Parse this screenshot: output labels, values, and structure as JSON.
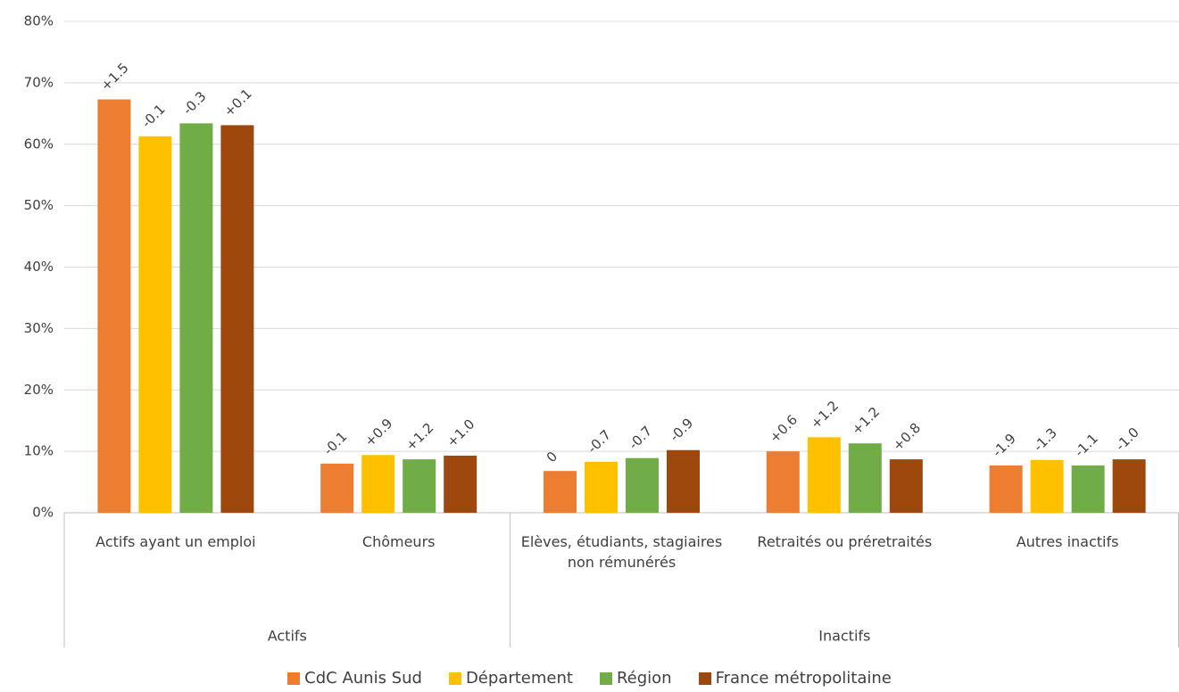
{
  "chart_data": {
    "type": "bar",
    "categories": [
      "Actifs ayant un emploi",
      "Chômeurs",
      "Elèves, étudiants, stagiaires non rémunérés",
      "Retraités ou préretraités",
      "Autres inactifs"
    ],
    "category_groups": [
      {
        "label": "Actifs",
        "span": [
          0,
          1
        ]
      },
      {
        "label": "Inactifs",
        "span": [
          2,
          4
        ]
      }
    ],
    "series": [
      {
        "name": "CdC Aunis Sud",
        "color": "#ed7d31",
        "values": [
          67.3,
          8.0,
          6.8,
          10.0,
          7.7
        ],
        "annotations": [
          "+1.5",
          "-0.1",
          "0",
          "+0.6",
          "-1.9"
        ]
      },
      {
        "name": "Département",
        "color": "#ffc000",
        "values": [
          61.3,
          9.4,
          8.3,
          12.3,
          8.6
        ],
        "annotations": [
          "-0.1",
          "+0.9",
          "-0.7",
          "+1.2",
          "-1.3"
        ]
      },
      {
        "name": "Région",
        "color": "#70ad47",
        "values": [
          63.4,
          8.7,
          8.9,
          11.3,
          7.7
        ],
        "annotations": [
          "-0.3",
          "+1.2",
          "-0.7",
          "+1.2",
          "-1.1"
        ]
      },
      {
        "name": "France métropolitaine",
        "color": "#9e480e",
        "values": [
          63.1,
          9.3,
          10.2,
          8.7,
          8.7
        ],
        "annotations": [
          "+0.1",
          "+1.0",
          "-0.9",
          "+0.8",
          "-1.0"
        ]
      }
    ],
    "ylim": [
      0,
      80
    ],
    "yticks": [
      {
        "value": 0,
        "label": "0%"
      },
      {
        "value": 10,
        "label": "10%"
      },
      {
        "value": 20,
        "label": "20%"
      },
      {
        "value": 30,
        "label": "30%"
      },
      {
        "value": 40,
        "label": "40%"
      },
      {
        "value": 50,
        "label": "50%"
      },
      {
        "value": 60,
        "label": "60%"
      },
      {
        "value": 70,
        "label": "70%"
      },
      {
        "value": 80,
        "label": "80%"
      }
    ],
    "grid": true,
    "legend": "bottom"
  }
}
